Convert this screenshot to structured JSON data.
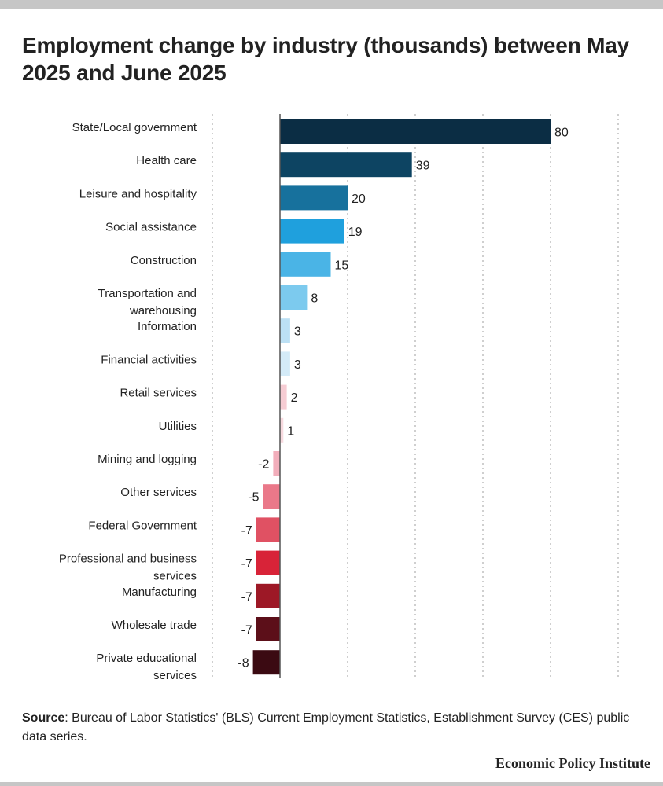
{
  "title": "Employment change by industry (thousands) between May 2025 and June 2025",
  "source_label": "Source",
  "source_text": ": Bureau of Labor Statistics' (BLS) Current Employment Statistics, Establishment Survey (CES) public data series.",
  "logo": "Economic Policy Institute",
  "chart_data": {
    "type": "bar",
    "orientation": "horizontal",
    "title": "Employment change by industry (thousands) between May 2025 and June 2025",
    "xlim": [
      -20,
      100
    ],
    "grid": true,
    "categories": [
      "State/Local government",
      "Health care",
      "Leisure and hospitality",
      "Social assistance",
      "Construction",
      "Transportation and warehousing",
      "Information",
      "Financial activities",
      "Retail services",
      "Utilities",
      "Mining and logging",
      "Other services",
      "Federal Government",
      "Professional and business services",
      "Manufacturing",
      "Wholesale trade",
      "Private educational services"
    ],
    "values": [
      80,
      39,
      20,
      19,
      15,
      8,
      3,
      3,
      2,
      1,
      -2,
      -5,
      -7,
      -7,
      -7,
      -7,
      -8
    ],
    "colors": [
      "#0b2d44",
      "#0d4462",
      "#17719d",
      "#1fa0dd",
      "#4ab4e6",
      "#7ccaee",
      "#bce0f4",
      "#d4ebf8",
      "#f6ccd3",
      "#f7dadf",
      "#f2aebb",
      "#ea7889",
      "#e05163",
      "#d82338",
      "#9d1826",
      "#5c0f19",
      "#3b0a12"
    ]
  }
}
